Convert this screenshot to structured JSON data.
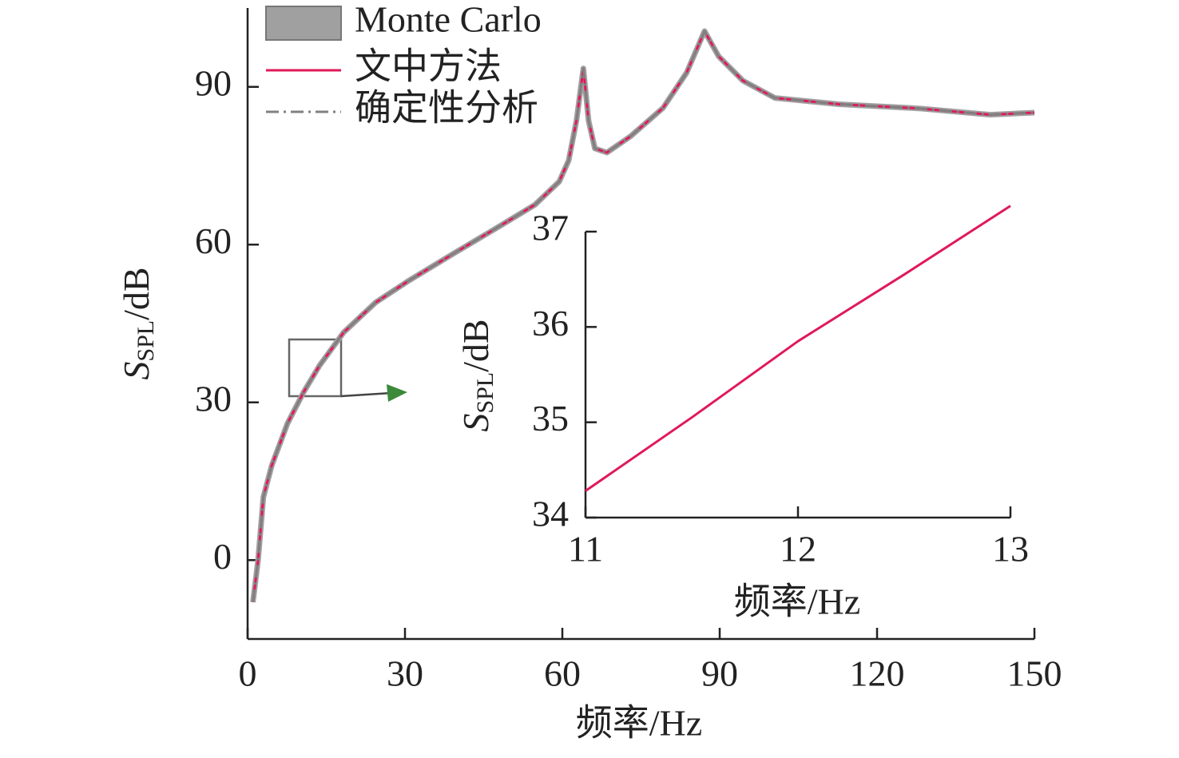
{
  "chart_data": [
    {
      "type": "line",
      "x_label": "频率/Hz",
      "y_label": {
        "main": "S",
        "sub": "SPL",
        "unit": "/dB"
      },
      "x": [
        1,
        2,
        3,
        4.6,
        7.6,
        10.7,
        13.7,
        18.3,
        24.4,
        30.5,
        39.6,
        47.2,
        54.8,
        59.4,
        61.2,
        62.7,
        64,
        65,
        66.2,
        68.5,
        73,
        79.2,
        83.7,
        87.1,
        89.8,
        94.4,
        100.5,
        112.7,
        127.9,
        141.6,
        150
      ],
      "series": [
        {
          "name": "Monte Carlo",
          "color": "#a0a0a0",
          "values": [
            -8,
            0,
            12,
            18,
            26,
            32,
            37,
            43.3,
            49,
            53,
            58.5,
            63,
            67.6,
            72,
            76,
            83.6,
            93.5,
            83.6,
            78.3,
            77.5,
            80.6,
            86,
            92.7,
            100.6,
            95.8,
            91.2,
            87.9,
            86.7,
            85.9,
            84.7,
            85.1
          ]
        },
        {
          "name": "文中方法",
          "color": "#e0195a",
          "values": [
            -8,
            0,
            12,
            18,
            26,
            32,
            37,
            43.3,
            49,
            53,
            58.5,
            63,
            67.6,
            72,
            76,
            83.6,
            93.5,
            83.6,
            78.3,
            77.5,
            80.6,
            86,
            92.7,
            100.6,
            95.8,
            91.2,
            87.9,
            86.7,
            85.9,
            84.7,
            85.1
          ]
        },
        {
          "name": "确定性分析",
          "color": "#808080",
          "values": [
            -8,
            0,
            12,
            18,
            26,
            32,
            37,
            43.3,
            49,
            53,
            58.5,
            63,
            67.6,
            72,
            76,
            83.6,
            93.5,
            83.6,
            78.3,
            77.5,
            80.6,
            86,
            92.7,
            100.6,
            95.8,
            91.2,
            87.9,
            86.7,
            85.9,
            84.7,
            85.1
          ]
        }
      ],
      "xlim": [
        0,
        150
      ],
      "ylim": [
        -15,
        105
      ],
      "xticks": [
        0,
        30,
        60,
        90,
        120,
        150
      ],
      "yticks": [
        0,
        30,
        60,
        90
      ]
    },
    {
      "type": "line",
      "x_label": "频率/Hz",
      "y_label": {
        "main": "S",
        "sub": "SPL",
        "unit": "/dB"
      },
      "x": [
        11,
        11.5,
        12,
        12.5,
        13
      ],
      "values": [
        34.28,
        35.05,
        35.85,
        36.55,
        37.27
      ],
      "color": "#e0195a",
      "xlim": [
        11,
        13
      ],
      "ylim": [
        34,
        37
      ],
      "xticks": [
        11,
        12,
        13
      ],
      "yticks": [
        34,
        35,
        36,
        37
      ]
    }
  ]
}
